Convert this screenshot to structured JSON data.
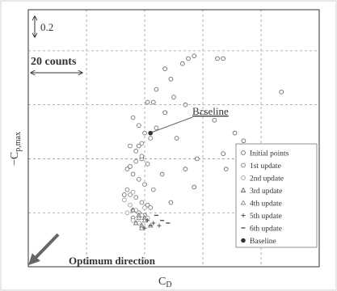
{
  "chart_data": {
    "type": "scatter",
    "x_label": {
      "main": "C",
      "sub": "D"
    },
    "y_label": {
      "main": "−C",
      "sub": "p,max"
    },
    "annotations": {
      "scale_y": "0.2",
      "scale_x": "20 counts",
      "baseline": "Baseline",
      "direction": "Optimum direction"
    },
    "xlim": [
      0,
      100
    ],
    "ylim": [
      0,
      100
    ],
    "xticks": [
      20,
      40,
      60,
      80
    ],
    "yticks": [
      21,
      42,
      63,
      84
    ],
    "grid": true,
    "legend": "lower right",
    "series": [
      {
        "name": "Initial points",
        "marker": "circle",
        "color": "#6a6a6a",
        "x": [
          57,
          55,
          53,
          65,
          67,
          87,
          49,
          47,
          44,
          50,
          43,
          54,
          60,
          64,
          71,
          74,
          76,
          67,
          58,
          54,
          46,
          39,
          35,
          33,
          36,
          49,
          57,
          68,
          51,
          47,
          41,
          38,
          74
        ],
        "values": [
          82,
          81,
          79,
          81,
          81,
          68,
          73,
          77,
          69,
          66,
          64,
          63,
          60,
          57,
          52,
          49,
          46,
          44,
          42,
          38,
          36,
          42,
          39,
          28,
          19,
          25,
          31,
          38,
          50,
          60,
          64,
          47,
          41
        ]
      },
      {
        "name": "1st update",
        "marker": "circle",
        "color": "#7a7a7a",
        "x": [
          36,
          38,
          40,
          42,
          35,
          37,
          39,
          41,
          34,
          36,
          38,
          40,
          43,
          35,
          37,
          39,
          41,
          36,
          38,
          40,
          42,
          34,
          37,
          39,
          44
        ],
        "values": [
          58,
          55,
          52,
          50,
          47,
          45,
          43,
          40,
          38,
          36,
          34,
          32,
          30,
          28,
          27,
          25,
          24,
          22,
          21,
          20,
          23,
          30,
          41,
          48,
          54
        ]
      },
      {
        "name": "2nd update",
        "marker": "circle",
        "color": "#a0a0a0",
        "x": [
          33,
          35,
          37,
          39,
          41,
          36,
          38,
          34,
          40,
          36
        ],
        "values": [
          26,
          24,
          22,
          20,
          19,
          18,
          17,
          21,
          23,
          29
        ]
      },
      {
        "name": "3rd update",
        "marker": "triangle",
        "color": "#6a6a6a",
        "x": [
          36,
          38,
          40,
          37,
          39
        ],
        "values": [
          22,
          20,
          19,
          17,
          16
        ]
      },
      {
        "name": "4th update",
        "marker": "triangle",
        "color": "#8a8a8a",
        "x": [
          38,
          40,
          42,
          39
        ],
        "values": [
          19,
          18,
          16,
          15
        ]
      },
      {
        "name": "5th update",
        "marker": "plus",
        "color": "#555555",
        "x": [
          41,
          43,
          45,
          40
        ],
        "values": [
          18,
          17,
          16,
          15
        ]
      },
      {
        "name": "6th update",
        "marker": "dash",
        "color": "#444444",
        "x": [
          44,
          46,
          48,
          42
        ],
        "values": [
          20,
          18,
          17,
          16
        ]
      },
      {
        "name": "Baseline",
        "marker": "filled",
        "color": "#333333",
        "x": [
          42
        ],
        "values": [
          52
        ]
      }
    ]
  }
}
